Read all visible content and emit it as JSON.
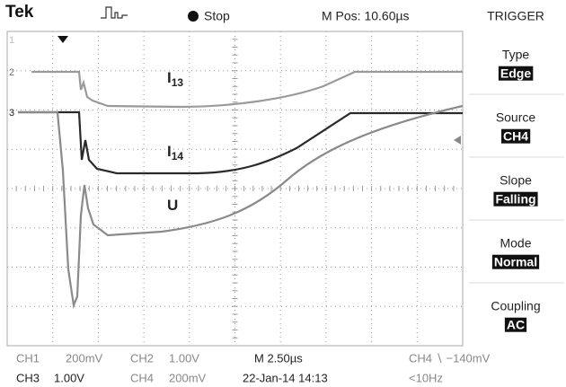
{
  "header": {
    "brand": "Tek",
    "status": "Stop",
    "position": "M Pos: 10.60µs"
  },
  "markers": [
    "1",
    "2",
    "3"
  ],
  "traces": [
    {
      "main": "I",
      "sub": "13"
    },
    {
      "main": "I",
      "sub": "14"
    },
    {
      "main": "U"
    }
  ],
  "menu": {
    "title": "TRIGGER",
    "items": [
      {
        "label": "Type",
        "value": "Edge"
      },
      {
        "label": "Source",
        "value": "CH4"
      },
      {
        "label": "Slope",
        "value": "Falling"
      },
      {
        "label": "Mode",
        "value": "Normal"
      },
      {
        "label": "Coupling",
        "value": "AC"
      }
    ]
  },
  "footer": {
    "rows": [
      [
        "CH1",
        "200mV",
        "CH2",
        "1.00V",
        "M 2.50µs",
        "CH4 ∖ −140mV"
      ],
      [
        "CH3",
        "1.00V",
        "CH4",
        "200mV",
        "22-Jan-14 14:13",
        "<10Hz"
      ]
    ]
  }
}
